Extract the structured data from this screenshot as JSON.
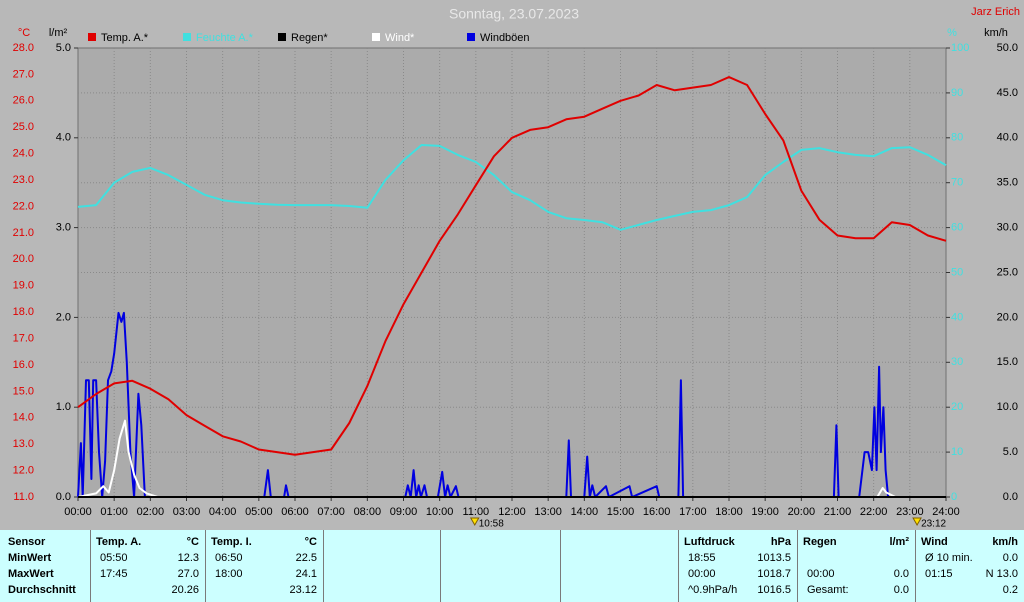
{
  "chart_data": {
    "type": "line",
    "title": "Sonntag, 23.07.2023",
    "author": "Jarz Erich",
    "grid": true,
    "xlim": [
      0,
      24
    ],
    "xticks": [
      {
        "value": 0,
        "label": "00:00"
      },
      {
        "value": 1,
        "label": "01:00"
      },
      {
        "value": 2,
        "label": "02:00"
      },
      {
        "value": 3,
        "label": "03:00"
      },
      {
        "value": 4,
        "label": "04:00"
      },
      {
        "value": 5,
        "label": "05:00"
      },
      {
        "value": 6,
        "label": "06:00"
      },
      {
        "value": 7,
        "label": "07:00"
      },
      {
        "value": 8,
        "label": "08:00"
      },
      {
        "value": 9,
        "label": "09:00"
      },
      {
        "value": 10,
        "label": "10:00"
      },
      {
        "value": 11,
        "label": "11:00"
      },
      {
        "value": 12,
        "label": "12:00"
      },
      {
        "value": 13,
        "label": "13:00"
      },
      {
        "value": 14,
        "label": "14:00"
      },
      {
        "value": 15,
        "label": "15:00"
      },
      {
        "value": 16,
        "label": "16:00"
      },
      {
        "value": 17,
        "label": "17:00"
      },
      {
        "value": 18,
        "label": "18:00"
      },
      {
        "value": 19,
        "label": "19:00"
      },
      {
        "value": 20,
        "label": "20:00"
      },
      {
        "value": 21,
        "label": "21:00"
      },
      {
        "value": 22,
        "label": "22:00"
      },
      {
        "value": 23,
        "label": "23:00"
      },
      {
        "value": 24,
        "label": "24:00"
      }
    ],
    "axes": {
      "y": {
        "label": "°C",
        "color": "#e00000",
        "lim": [
          11,
          28
        ],
        "ticks": [
          {
            "value": 11,
            "label": "11.0"
          },
          {
            "value": 12,
            "label": "12.0"
          },
          {
            "value": 13,
            "label": "13.0"
          },
          {
            "value": 14,
            "label": "14.0"
          },
          {
            "value": 15,
            "label": "15.0"
          },
          {
            "value": 16,
            "label": "16.0"
          },
          {
            "value": 17,
            "label": "17.0"
          },
          {
            "value": 18,
            "label": "18.0"
          },
          {
            "value": 19,
            "label": "19.0"
          },
          {
            "value": 20,
            "label": "20.0"
          },
          {
            "value": 21,
            "label": "21.0"
          },
          {
            "value": 22,
            "label": "22.0"
          },
          {
            "value": 23,
            "label": "23.0"
          },
          {
            "value": 24,
            "label": "24.0"
          },
          {
            "value": 25,
            "label": "25.0"
          },
          {
            "value": 26,
            "label": "26.0"
          },
          {
            "value": 27,
            "label": "27.0"
          },
          {
            "value": 28,
            "label": "28.0"
          }
        ]
      },
      "rain": {
        "label": "l/m²",
        "color": "#000000",
        "lim": [
          0,
          5
        ],
        "ticks": [
          {
            "value": 0,
            "label": "0.0"
          },
          {
            "value": 1,
            "label": "1.0"
          },
          {
            "value": 2,
            "label": "2.0"
          },
          {
            "value": 3,
            "label": "3.0"
          },
          {
            "value": 4,
            "label": "4.0"
          },
          {
            "value": 5,
            "label": "5.0"
          }
        ]
      },
      "y2": {
        "label": "%",
        "color": "#40e0e0",
        "lim": [
          0,
          100
        ],
        "ticks": [
          0,
          10,
          20,
          30,
          40,
          50,
          60,
          70,
          80,
          90,
          100
        ]
      },
      "y3": {
        "label": "km/h",
        "color": "#000000",
        "lim": [
          0,
          50
        ],
        "ticks": [
          {
            "value": 0,
            "label": "0.0"
          },
          {
            "value": 5,
            "label": "5.0"
          },
          {
            "value": 10,
            "label": "10.0"
          },
          {
            "value": 15,
            "label": "15.0"
          },
          {
            "value": 20,
            "label": "20.0"
          },
          {
            "value": 25,
            "label": "25.0"
          },
          {
            "value": 30,
            "label": "30.0"
          },
          {
            "value": 35,
            "label": "35.0"
          },
          {
            "value": 40,
            "label": "40.0"
          },
          {
            "value": 45,
            "label": "45.0"
          },
          {
            "value": 50,
            "label": "50.0"
          }
        ]
      }
    },
    "series": [
      {
        "name": "Temp. A.*",
        "color": "#e00000",
        "axis": "y",
        "x": [
          0,
          0.5,
          1,
          1.5,
          2,
          2.5,
          3,
          3.5,
          4,
          4.5,
          5,
          5.5,
          6,
          6.5,
          7,
          7.5,
          8,
          8.5,
          9,
          9.5,
          10,
          10.5,
          11,
          11.5,
          12,
          12.5,
          13,
          13.5,
          14,
          14.5,
          15,
          15.5,
          16,
          16.5,
          17,
          17.5,
          18,
          18.5,
          19,
          19.5,
          20,
          20.5,
          21,
          21.5,
          22,
          22.5,
          23,
          23.5,
          24
        ],
        "values": [
          14.4,
          14.9,
          15.3,
          15.4,
          15.1,
          14.7,
          14.1,
          13.7,
          13.3,
          13.1,
          12.8,
          12.7,
          12.6,
          12.7,
          12.8,
          13.8,
          15.2,
          16.9,
          18.3,
          19.5,
          20.7,
          21.7,
          22.8,
          23.9,
          24.6,
          24.9,
          25.0,
          25.3,
          25.4,
          25.7,
          26.0,
          26.2,
          26.6,
          26.4,
          26.5,
          26.6,
          26.9,
          26.6,
          25.5,
          24.5,
          22.6,
          21.5,
          20.9,
          20.8,
          20.8,
          21.4,
          21.3,
          20.9,
          20.7
        ]
      },
      {
        "name": "Feuchte A.*",
        "color": "#40e0e0",
        "axis": "y2",
        "x": [
          0,
          0.5,
          1,
          1.5,
          2,
          2.5,
          3,
          3.5,
          4,
          4.5,
          5,
          5.5,
          6,
          6.5,
          7,
          7.5,
          8,
          8.5,
          9,
          9.5,
          10,
          10.5,
          11,
          11.5,
          12,
          12.5,
          13,
          13.5,
          14,
          14.5,
          15,
          15.5,
          16,
          16.5,
          17,
          17.5,
          18,
          18.5,
          19,
          19.5,
          20,
          20.5,
          21,
          21.5,
          22,
          22.5,
          23,
          23.5,
          24
        ],
        "values": [
          64.6,
          65,
          70,
          72.4,
          73.3,
          71.7,
          69.5,
          67.3,
          66.1,
          65.6,
          65.3,
          65.1,
          65,
          65,
          65,
          64.8,
          64.4,
          70.6,
          75,
          78.4,
          78.2,
          76.2,
          74.6,
          71.7,
          67.9,
          66.1,
          63.5,
          62.1,
          61.7,
          61.2,
          59.5,
          60.6,
          61.7,
          62.6,
          63.5,
          63.9,
          65,
          66.8,
          71.7,
          74.6,
          77.3,
          77.7,
          76.8,
          76.2,
          75.9,
          77.7,
          77.9,
          76.2,
          73.9
        ]
      },
      {
        "name": "Regen*",
        "color": "#000000",
        "axis": "rain",
        "x": [
          0,
          24
        ],
        "values": [
          0,
          0
        ]
      },
      {
        "name": "Wind*",
        "color": "#ffffff",
        "axis": "y3",
        "x": [
          0,
          0.5,
          0.7,
          0.85,
          1.0,
          1.15,
          1.3,
          1.4,
          1.55,
          1.7,
          1.9,
          2.2,
          22.1,
          22.25,
          22.35,
          22.6,
          24
        ],
        "values": [
          0,
          0.4,
          1.2,
          0.5,
          3,
          6.5,
          8.5,
          5,
          2.5,
          1.0,
          0.4,
          0,
          0,
          1.0,
          0.5,
          0,
          0
        ]
      },
      {
        "name": "Windböen",
        "color": "#0000e0",
        "axis": "y3",
        "x": [
          0,
          0.08,
          0.13,
          0.22,
          0.3,
          0.37,
          0.42,
          0.5,
          0.58,
          0.67,
          0.75,
          0.83,
          0.92,
          1.0,
          1.12,
          1.2,
          1.27,
          1.35,
          1.45,
          1.55,
          1.67,
          1.75,
          1.85,
          2.3,
          5.15,
          5.25,
          5.33,
          5.7,
          5.75,
          5.82,
          9.05,
          9.12,
          9.2,
          9.28,
          9.35,
          9.42,
          9.48,
          9.58,
          9.65,
          9.95,
          10.07,
          10.15,
          10.22,
          10.3,
          10.45,
          10.52,
          13.5,
          13.57,
          13.63,
          14.0,
          14.08,
          14.15,
          14.22,
          14.3,
          14.6,
          14.68,
          15.25,
          15.32,
          16.0,
          16.07,
          16.6,
          16.67,
          16.73,
          20.9,
          20.97,
          21.03,
          21.6,
          21.75,
          21.85,
          21.95,
          22.02,
          22.08,
          22.15,
          22.2,
          22.27,
          22.33,
          22.4,
          24
        ],
        "values": [
          0,
          6,
          0,
          13,
          13,
          2,
          13,
          13,
          5,
          0,
          4,
          13,
          14,
          16,
          20.5,
          19.5,
          20.5,
          15,
          5,
          0,
          11.5,
          8,
          0,
          0,
          0,
          3,
          0,
          0,
          1.3,
          0,
          0,
          1.3,
          0,
          3,
          0,
          1.3,
          0,
          1.3,
          0,
          0,
          2.8,
          0,
          1.3,
          0,
          1.2,
          0,
          0,
          6.3,
          0,
          0,
          4.5,
          0,
          1.3,
          0,
          1.2,
          0,
          1.2,
          0,
          1.2,
          0,
          0,
          13,
          0,
          0,
          8,
          0,
          0,
          5,
          5,
          3,
          10,
          3,
          14.5,
          5,
          10,
          3,
          0,
          0
        ]
      }
    ],
    "annotations": [
      {
        "x": 10.97,
        "label": "10:58"
      },
      {
        "x": 23.2,
        "label": "23:12"
      }
    ]
  },
  "table": {
    "row_labels": [
      "Sensor",
      "MinWert",
      "MaxWert",
      "Durchschnitt"
    ],
    "groups": [
      {
        "title": "Temp. A.",
        "unit": "°C",
        "rows": [
          [
            "05:50",
            "12.3"
          ],
          [
            "17:45",
            "27.0"
          ],
          [
            null,
            "20.26"
          ]
        ]
      },
      {
        "title": "Temp. I.",
        "unit": "°C",
        "rows": [
          [
            "06:50",
            "22.5"
          ],
          [
            "18:00",
            "24.1"
          ],
          [
            null,
            "23.12"
          ]
        ]
      },
      {
        "title": "Luftdruck",
        "unit": "hPa",
        "rows": [
          [
            "18:55",
            "1013.5"
          ],
          [
            "00:00",
            "1018.7"
          ],
          [
            "^0.9hPa/h",
            "1016.5"
          ]
        ]
      },
      {
        "title": "Regen",
        "unit": "l/m²",
        "rows": [
          [
            null,
            null
          ],
          [
            "00:00",
            "0.0"
          ],
          [
            "Gesamt:",
            "0.0"
          ]
        ]
      },
      {
        "title": "Wind",
        "unit": "km/h",
        "rows": [
          [
            "Ø 10 min.",
            "0.0"
          ],
          [
            "01:15",
            "N 13.0"
          ],
          [
            null,
            "0.2"
          ]
        ]
      }
    ]
  }
}
